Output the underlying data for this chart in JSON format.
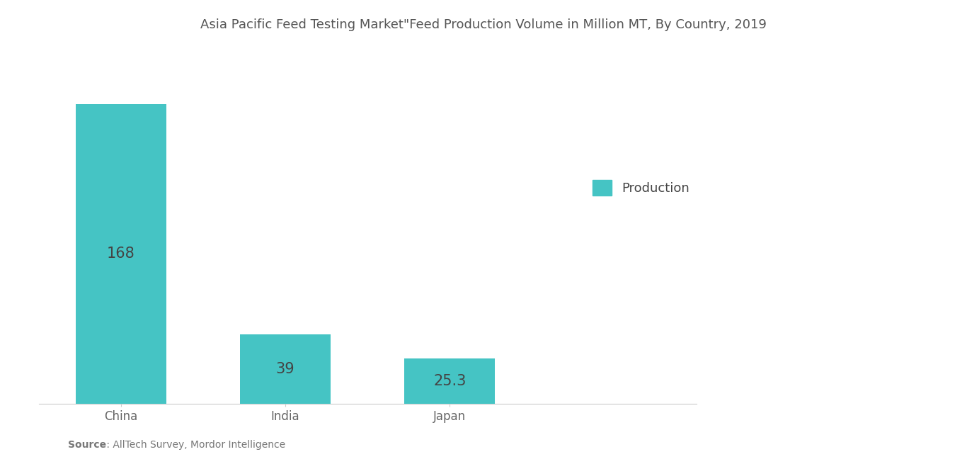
{
  "title": "Asia Pacific Feed Testing Market\"Feed Production Volume in Million MT, By Country, 2019",
  "categories": [
    "China",
    "India",
    "Japan"
  ],
  "values": [
    168,
    39,
    25.3
  ],
  "bar_color": "#45C4C4",
  "value_label_color": "#444444",
  "value_labels": [
    "168",
    "39",
    "25.3"
  ],
  "legend_label": "Production",
  "legend_color": "#45C4C4",
  "source_bold": "Source",
  "source_rest": " : AllTech Survey, Mordor Intelligence",
  "background_color": "#ffffff",
  "title_fontsize": 13,
  "bar_label_fontsize": 15,
  "tick_label_fontsize": 12,
  "legend_fontsize": 13,
  "source_fontsize": 10,
  "ylim_max": 195,
  "bar_positions": [
    1,
    2,
    3
  ],
  "bar_width": 0.55
}
